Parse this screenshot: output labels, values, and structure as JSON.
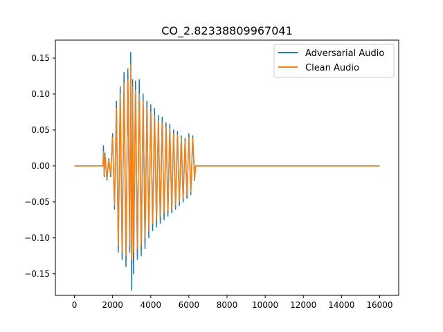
{
  "chart_data": {
    "type": "line",
    "title": "CO_2.82338809967041",
    "xlabel": "",
    "ylabel": "",
    "xlim": [
      -1000,
      17000
    ],
    "ylim": [
      -0.18,
      0.175
    ],
    "xticks": [
      0,
      2000,
      4000,
      6000,
      8000,
      10000,
      12000,
      14000,
      16000
    ],
    "xtick_labels": [
      "0",
      "2000",
      "4000",
      "6000",
      "8000",
      "10000",
      "12000",
      "14000",
      "16000"
    ],
    "yticks": [
      -0.15,
      -0.1,
      -0.05,
      0.0,
      0.05,
      0.1,
      0.15
    ],
    "ytick_labels": [
      "−0.15",
      "−0.10",
      "−0.05",
      "0.00",
      "0.05",
      "0.10",
      "0.15"
    ],
    "grid": false,
    "legend_position": "upper right",
    "series": [
      {
        "name": "Adversarial Audio",
        "color": "#1f77b4",
        "x": [
          0,
          1500,
          1520,
          1560,
          1600,
          1700,
          1800,
          1900,
          2000,
          2100,
          2200,
          2300,
          2400,
          2500,
          2600,
          2700,
          2800,
          2900,
          2950,
          3000,
          3050,
          3100,
          3200,
          3300,
          3400,
          3500,
          3600,
          3700,
          3800,
          3900,
          4000,
          4100,
          4200,
          4300,
          4400,
          4500,
          4600,
          4700,
          4800,
          4900,
          5000,
          5100,
          5200,
          5300,
          5400,
          5500,
          5600,
          5700,
          5800,
          5900,
          6000,
          6100,
          6200,
          6300,
          6350,
          6400,
          16000
        ],
        "y": [
          0.0,
          0.0,
          0.028,
          -0.015,
          0.018,
          -0.02,
          0.01,
          -0.015,
          0.045,
          -0.06,
          0.09,
          -0.12,
          0.11,
          -0.13,
          0.13,
          -0.14,
          0.135,
          -0.12,
          0.158,
          -0.173,
          0.12,
          -0.15,
          0.118,
          -0.13,
          0.12,
          -0.125,
          0.1,
          -0.115,
          0.09,
          -0.1,
          0.085,
          -0.09,
          0.08,
          -0.085,
          0.07,
          -0.08,
          0.068,
          -0.075,
          0.06,
          -0.07,
          0.058,
          -0.065,
          0.05,
          -0.06,
          0.048,
          -0.055,
          0.042,
          -0.05,
          0.038,
          -0.045,
          0.045,
          -0.04,
          0.042,
          -0.02,
          0.0,
          0.0,
          0.0
        ]
      },
      {
        "name": "Clean Audio",
        "color": "#ff7f0e",
        "x": [
          0,
          1500,
          1520,
          1560,
          1600,
          1700,
          1800,
          1900,
          2000,
          2100,
          2200,
          2300,
          2400,
          2500,
          2600,
          2700,
          2800,
          2900,
          2950,
          3000,
          3050,
          3100,
          3200,
          3300,
          3400,
          3500,
          3600,
          3700,
          3800,
          3900,
          4000,
          4100,
          4200,
          4300,
          4400,
          4500,
          4600,
          4700,
          4800,
          4900,
          5000,
          5100,
          5200,
          5300,
          5400,
          5500,
          5600,
          5700,
          5800,
          5900,
          6000,
          6100,
          6200,
          6300,
          6350,
          6400,
          16000
        ],
        "y": [
          0.0,
          0.0,
          0.02,
          -0.012,
          0.015,
          -0.018,
          0.008,
          -0.012,
          0.04,
          -0.055,
          0.08,
          -0.11,
          0.1,
          -0.12,
          0.115,
          -0.125,
          0.12,
          -0.11,
          0.14,
          -0.13,
          0.11,
          -0.12,
          0.105,
          -0.115,
          0.1,
          -0.11,
          0.09,
          -0.1,
          0.08,
          -0.09,
          0.075,
          -0.08,
          0.07,
          -0.075,
          0.062,
          -0.07,
          0.06,
          -0.066,
          0.054,
          -0.062,
          0.052,
          -0.058,
          0.045,
          -0.054,
          0.043,
          -0.05,
          0.038,
          -0.045,
          0.034,
          -0.04,
          0.04,
          -0.036,
          0.038,
          -0.018,
          0.0,
          0.0,
          0.0
        ]
      }
    ]
  }
}
